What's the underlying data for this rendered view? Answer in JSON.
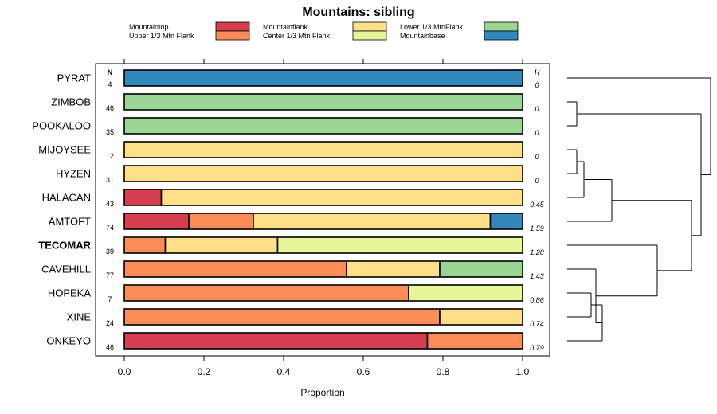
{
  "chart_data": {
    "type": "bar",
    "stacked": true,
    "orientation": "horizontal",
    "title": "Mountains: sibling",
    "xlabel": "Proportion",
    "xlim": [
      0,
      1
    ],
    "xticks": [
      "0.0",
      "0.2",
      "0.4",
      "0.6",
      "0.8",
      "1.0"
    ],
    "n_header": "N",
    "h_header": "H",
    "categories_legend": [
      {
        "name": "Mountaintop",
        "color": "#d53e4f"
      },
      {
        "name": "Upper 1/3 Mtn Flank",
        "color": "#fc8d59"
      },
      {
        "name": "Mountainflank",
        "color": "#fee08b"
      },
      {
        "name": "Center 1/3 Mtn Flank",
        "color": "#e6f598"
      },
      {
        "name": "Lower 1/3 MtnFlank",
        "color": "#99d594"
      },
      {
        "name": "Mountainbase",
        "color": "#3288bd"
      }
    ],
    "rows": [
      {
        "label": "PYRAT",
        "bold": false,
        "n": "4",
        "h": "0",
        "segments": [
          {
            "cat": "Mountainbase",
            "value": 1.0
          }
        ]
      },
      {
        "label": "ZIMBOB",
        "bold": false,
        "n": "46",
        "h": "0",
        "segments": [
          {
            "cat": "Lower 1/3 MtnFlank",
            "value": 1.0
          }
        ]
      },
      {
        "label": "POOKALOO",
        "bold": false,
        "n": "35",
        "h": "0",
        "segments": [
          {
            "cat": "Lower 1/3 MtnFlank",
            "value": 1.0
          }
        ]
      },
      {
        "label": "MIJOYSEE",
        "bold": false,
        "n": "12",
        "h": "0",
        "segments": [
          {
            "cat": "Mountainflank",
            "value": 1.0
          }
        ]
      },
      {
        "label": "HYZEN",
        "bold": false,
        "n": "31",
        "h": "0",
        "segments": [
          {
            "cat": "Mountainflank",
            "value": 1.0
          }
        ]
      },
      {
        "label": "HALACAN",
        "bold": false,
        "n": "43",
        "h": "0.45",
        "segments": [
          {
            "cat": "Mountaintop",
            "value": 0.093
          },
          {
            "cat": "Mountainflank",
            "value": 0.907
          }
        ]
      },
      {
        "label": "AMTOFT",
        "bold": false,
        "n": "74",
        "h": "1.59",
        "segments": [
          {
            "cat": "Mountaintop",
            "value": 0.162
          },
          {
            "cat": "Upper 1/3 Mtn Flank",
            "value": 0.162
          },
          {
            "cat": "Mountainflank",
            "value": 0.595
          },
          {
            "cat": "Mountainbase",
            "value": 0.081
          }
        ]
      },
      {
        "label": "TECOMAR",
        "bold": true,
        "n": "39",
        "h": "1.28",
        "segments": [
          {
            "cat": "Upper 1/3 Mtn Flank",
            "value": 0.103
          },
          {
            "cat": "Mountainflank",
            "value": 0.282
          },
          {
            "cat": "Center 1/3 Mtn Flank",
            "value": 0.615
          }
        ]
      },
      {
        "label": "CAVEHILL",
        "bold": false,
        "n": "77",
        "h": "1.43",
        "segments": [
          {
            "cat": "Upper 1/3 Mtn Flank",
            "value": 0.558
          },
          {
            "cat": "Mountainflank",
            "value": 0.234
          },
          {
            "cat": "Lower 1/3 MtnFlank",
            "value": 0.208
          }
        ]
      },
      {
        "label": "HOPEKA",
        "bold": false,
        "n": "7",
        "h": "0.86",
        "segments": [
          {
            "cat": "Upper 1/3 Mtn Flank",
            "value": 0.714
          },
          {
            "cat": "Center 1/3 Mtn Flank",
            "value": 0.286
          }
        ]
      },
      {
        "label": "XINE",
        "bold": false,
        "n": "24",
        "h": "0.74",
        "segments": [
          {
            "cat": "Upper 1/3 Mtn Flank",
            "value": 0.792
          },
          {
            "cat": "Mountainflank",
            "value": 0.208
          }
        ]
      },
      {
        "label": "ONKEYO",
        "bold": false,
        "n": "46",
        "h": "0.79",
        "segments": [
          {
            "cat": "Mountaintop",
            "value": 0.761
          },
          {
            "cat": "Upper 1/3 Mtn Flank",
            "value": 0.239
          }
        ]
      }
    ],
    "dendrogram": "hierarchical clustering of rows shown to the right"
  }
}
